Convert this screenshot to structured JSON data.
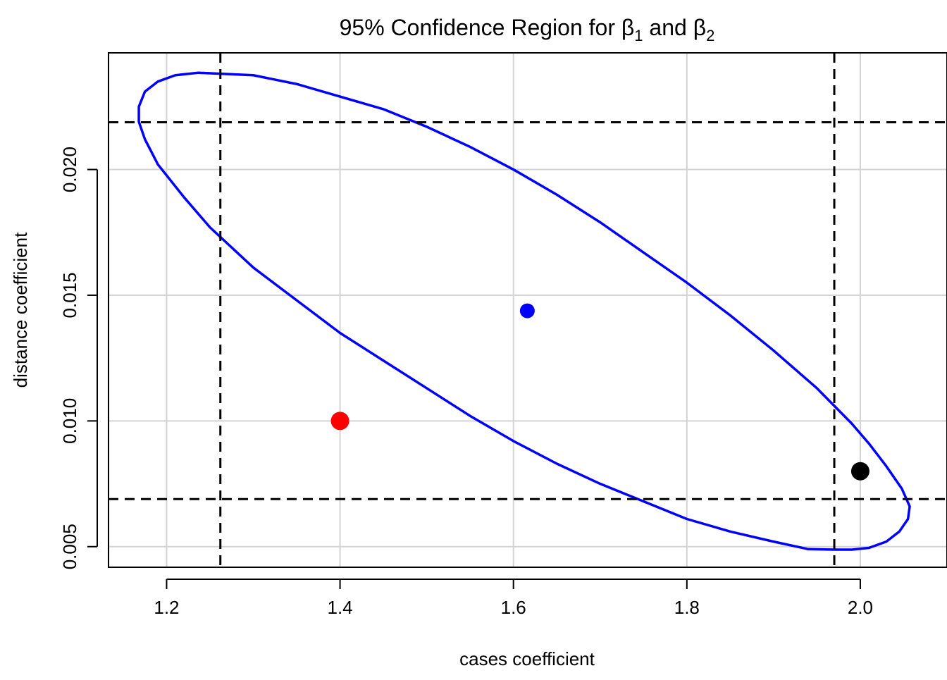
{
  "chart_data": {
    "type": "scatter",
    "title_prefix": "95% Confidence Region for ",
    "title_beta": "β",
    "title_sub1": "1",
    "title_and": " and ",
    "title_sub2": "2",
    "xlabel": "cases coefficient",
    "ylabel": "distance coefficient",
    "xlim": [
      1.133,
      2.1
    ],
    "ylim": [
      0.00418,
      0.02464
    ],
    "x_ticks": [
      1.2,
      1.4,
      1.6,
      1.8,
      2.0
    ],
    "x_tick_labels": [
      "1.2",
      "1.4",
      "1.6",
      "1.8",
      "2.0"
    ],
    "y_ticks": [
      0.005,
      0.01,
      0.015,
      0.02
    ],
    "y_tick_labels": [
      "0.005",
      "0.010",
      "0.015",
      "0.020"
    ],
    "grid": true,
    "confidence_ellipse": {
      "color": "#0000ff",
      "points": [
        [
          1.168,
          0.0225
        ],
        [
          1.175,
          0.0231
        ],
        [
          1.19,
          0.0235
        ],
        [
          1.21,
          0.02375
        ],
        [
          1.237,
          0.02385
        ],
        [
          1.3,
          0.02375
        ],
        [
          1.35,
          0.0234
        ],
        [
          1.4,
          0.0229
        ],
        [
          1.45,
          0.0224
        ],
        [
          1.5,
          0.0217
        ],
        [
          1.55,
          0.0209
        ],
        [
          1.6,
          0.02
        ],
        [
          1.65,
          0.019
        ],
        [
          1.7,
          0.0179
        ],
        [
          1.75,
          0.0167
        ],
        [
          1.8,
          0.0155
        ],
        [
          1.85,
          0.0142
        ],
        [
          1.9,
          0.0128
        ],
        [
          1.95,
          0.0113
        ],
        [
          1.99,
          0.0099
        ],
        [
          2.01,
          0.0091
        ],
        [
          2.03,
          0.0082
        ],
        [
          2.048,
          0.0073
        ],
        [
          2.057,
          0.0066
        ],
        [
          2.055,
          0.0061
        ],
        [
          2.045,
          0.0056
        ],
        [
          2.03,
          0.0052
        ],
        [
          2.01,
          0.00495
        ],
        [
          1.99,
          0.00488
        ],
        [
          1.97,
          0.00488
        ],
        [
          1.94,
          0.0049
        ],
        [
          1.9,
          0.0052
        ],
        [
          1.85,
          0.0056
        ],
        [
          1.8,
          0.0061
        ],
        [
          1.75,
          0.0068
        ],
        [
          1.7,
          0.0075
        ],
        [
          1.65,
          0.0083
        ],
        [
          1.6,
          0.0092
        ],
        [
          1.55,
          0.0102
        ],
        [
          1.5,
          0.0113
        ],
        [
          1.45,
          0.0124
        ],
        [
          1.4,
          0.0135
        ],
        [
          1.35,
          0.0148
        ],
        [
          1.3,
          0.0161
        ],
        [
          1.25,
          0.0177
        ],
        [
          1.22,
          0.0189
        ],
        [
          1.19,
          0.0202
        ],
        [
          1.175,
          0.0212
        ],
        [
          1.168,
          0.0219
        ],
        [
          1.168,
          0.0225
        ]
      ]
    },
    "individual_ci_lines": {
      "color": "#000000",
      "style": "dashed",
      "x": [
        1.262,
        1.97
      ],
      "y": [
        0.00689,
        0.02188
      ]
    },
    "points": [
      {
        "x": 1.616,
        "y": 0.01438,
        "color": "#0000ff",
        "size": "small"
      },
      {
        "x": 1.4,
        "y": 0.01,
        "color": "#ff0000",
        "size": "large"
      },
      {
        "x": 2.0,
        "y": 0.008,
        "color": "#000000",
        "size": "large"
      }
    ]
  }
}
